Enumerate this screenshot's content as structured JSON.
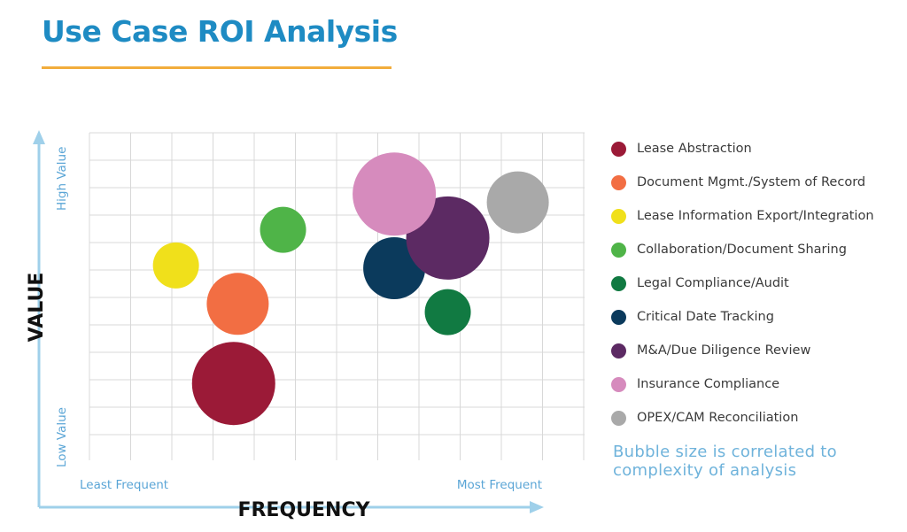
{
  "header": {
    "title": "Use Case ROI Analysis"
  },
  "colors": {
    "title": "#1e8bc3",
    "rule": "#f2ad3c",
    "axis": "#9fd0ea",
    "tick_text": "#5aa5d6",
    "grid": "#d8d8d8"
  },
  "chart_data": {
    "type": "scatter",
    "xlabel": "FREQUENCY",
    "ylabel": "VALUE",
    "x_tick_labels": {
      "low": "Least Frequent",
      "high": "Most Frequent"
    },
    "y_tick_labels": {
      "low": "Low Value",
      "high": "High Value"
    },
    "grid": true,
    "legend_position": "right",
    "size_note": "Bubble size is correlated to complexity of analysis",
    "series": [
      {
        "name": "Lease Abstraction",
        "color": "#9b1a37",
        "x": 3.5,
        "y": 2.8,
        "size": 47
      },
      {
        "name": "Document Mgmt./System of Record",
        "color": "#f26e43",
        "x": 3.6,
        "y": 5.7,
        "size": 35
      },
      {
        "name": "Lease Information Export/Integration",
        "color": "#f0e01b",
        "x": 2.1,
        "y": 7.1,
        "size": 26
      },
      {
        "name": "Collaboration/Document Sharing",
        "color": "#4fb448",
        "x": 4.7,
        "y": 8.4,
        "size": 26
      },
      {
        "name": "Legal Compliance/Audit",
        "color": "#117a42",
        "x": 8.7,
        "y": 5.4,
        "size": 26
      },
      {
        "name": "Critical Date Tracking",
        "color": "#0b3a5c",
        "x": 7.4,
        "y": 7.0,
        "size": 35
      },
      {
        "name": "M&A/Due Diligence Review",
        "color": "#5c2a63",
        "x": 8.7,
        "y": 8.1,
        "size": 47
      },
      {
        "name": "Insurance Compliance",
        "color": "#d68bbd",
        "x": 7.4,
        "y": 9.7,
        "size": 47
      },
      {
        "name": "OPEX/CAM Reconciliation",
        "color": "#a9a9a9",
        "x": 10.4,
        "y": 9.4,
        "size": 35
      }
    ]
  }
}
